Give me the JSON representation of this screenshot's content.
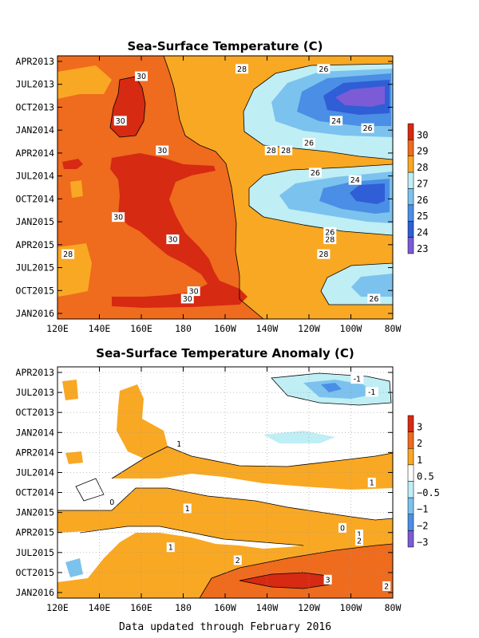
{
  "footer": "Data updated through February 2016",
  "chart_data": [
    {
      "type": "heatmap",
      "title": "Sea-Surface Temperature (C)",
      "x_ticks": [
        "120E",
        "140E",
        "160E",
        "180",
        "160W",
        "140W",
        "120W",
        "100W",
        "80W"
      ],
      "y_ticks": [
        "APR2013",
        "JUL2013",
        "OCT2013",
        "JAN2014",
        "APR2014",
        "JUL2014",
        "OCT2014",
        "JAN2015",
        "APR2015",
        "JUL2015",
        "OCT2015",
        "JAN2016"
      ],
      "colorbar": {
        "levels": [
          "30",
          "29",
          "28",
          "27",
          "26",
          "25",
          "24",
          "23"
        ],
        "colors": [
          "#d62a13",
          "#ef6b1d",
          "#f9a823",
          "#bfeef5",
          "#7cc2ee",
          "#4a8fe5",
          "#2f5ed6",
          "#7b5bd6"
        ]
      },
      "contour_labels": [
        {
          "text": "30",
          "lon": 160,
          "date": "2013-06"
        },
        {
          "text": "30",
          "lon": 150,
          "date": "2013-12"
        },
        {
          "text": "30",
          "lon": 170,
          "date": "2014-04"
        },
        {
          "text": "30",
          "lon": 149,
          "date": "2015-01"
        },
        {
          "text": "30",
          "lon": 175,
          "date": "2015-04"
        },
        {
          "text": "30",
          "lon": 185,
          "date": "2015-11"
        },
        {
          "text": "30",
          "lon": 182,
          "date": "2015-12"
        },
        {
          "text": "28",
          "lon": 208,
          "date": "2013-05"
        },
        {
          "text": "28",
          "lon": 222,
          "date": "2014-04"
        },
        {
          "text": "28",
          "lon": 229,
          "date": "2014-04"
        },
        {
          "text": "28",
          "lon": 125,
          "date": "2015-06"
        },
        {
          "text": "28",
          "lon": 250,
          "date": "2015-04"
        },
        {
          "text": "28",
          "lon": 247,
          "date": "2015-06"
        },
        {
          "text": "26",
          "lon": 247,
          "date": "2013-05"
        },
        {
          "text": "26",
          "lon": 268,
          "date": "2014-01"
        },
        {
          "text": "26",
          "lon": 240,
          "date": "2014-03"
        },
        {
          "text": "26",
          "lon": 243,
          "date": "2014-07"
        },
        {
          "text": "26",
          "lon": 250,
          "date": "2015-03"
        },
        {
          "text": "26",
          "lon": 271,
          "date": "2015-12"
        },
        {
          "text": "24",
          "lon": 253,
          "date": "2013-12"
        },
        {
          "text": "24",
          "lon": 262,
          "date": "2014-08"
        }
      ]
    },
    {
      "type": "heatmap",
      "title": "Sea-Surface Temperature Anomaly (C)",
      "x_ticks": [
        "120E",
        "140E",
        "160E",
        "180",
        "160W",
        "140W",
        "120W",
        "100W",
        "80W"
      ],
      "y_ticks": [
        "APR2013",
        "JUL2013",
        "OCT2013",
        "JAN2014",
        "APR2014",
        "JUL2014",
        "OCT2014",
        "JAN2015",
        "APR2015",
        "JUL2015",
        "OCT2015",
        "JAN2016"
      ],
      "colorbar": {
        "levels": [
          "3",
          "2",
          "1",
          "0.5",
          "−0.5",
          "−1",
          "−2",
          "−3"
        ],
        "colors": [
          "#d62a13",
          "#ef6b1d",
          "#f9a823",
          "#ffffff",
          "#bfeef5",
          "#7cc2ee",
          "#4a8fe5",
          "#7b5bd6"
        ]
      },
      "contour_labels": [
        {
          "text": "-1",
          "lon": 263,
          "date": "2013-05"
        },
        {
          "text": "-1",
          "lon": 270,
          "date": "2013-07"
        },
        {
          "text": "1",
          "lon": 178,
          "date": "2014-03"
        },
        {
          "text": "1",
          "lon": 270,
          "date": "2014-09"
        },
        {
          "text": "1",
          "lon": 182,
          "date": "2015-01"
        },
        {
          "text": "1",
          "lon": 174,
          "date": "2015-07"
        },
        {
          "text": "1",
          "lon": 264,
          "date": "2015-05"
        },
        {
          "text": "2",
          "lon": 264,
          "date": "2015-06"
        },
        {
          "text": "2",
          "lon": 206,
          "date": "2015-09"
        },
        {
          "text": "2",
          "lon": 277,
          "date": "2016-01"
        },
        {
          "text": "3",
          "lon": 249,
          "date": "2015-12"
        },
        {
          "text": "0",
          "lon": 146,
          "date": "2014-12"
        },
        {
          "text": "0",
          "lon": 256,
          "date": "2015-04"
        }
      ]
    }
  ]
}
